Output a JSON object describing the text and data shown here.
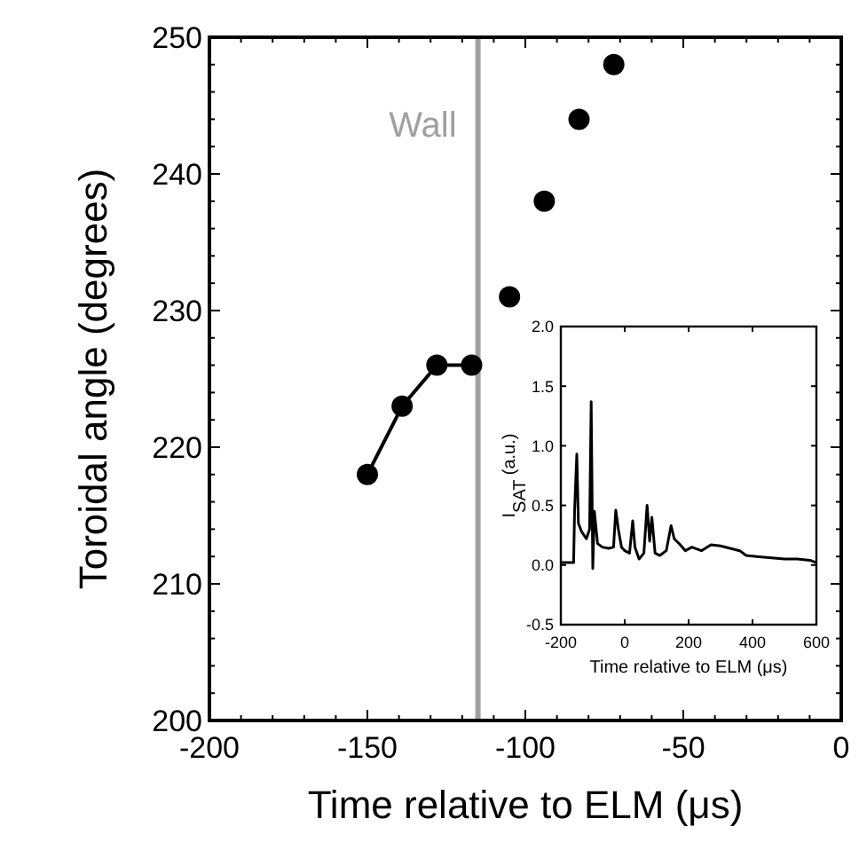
{
  "chart_data": [
    {
      "type": "line",
      "xlabel": "Time relative to ELM (μs)",
      "ylabel": "Toroidal angle (degrees)",
      "xlim": [
        -200,
        0
      ],
      "ylim": [
        200,
        250
      ],
      "xticks": [
        -200,
        {
          "value": -190,
          "label": null
        },
        {
          "value": -180,
          "label": null
        },
        {
          "value": -170,
          "label": null
        },
        {
          "value": -160,
          "label": null
        },
        -150,
        {
          "value": -140,
          "label": null
        },
        {
          "value": -130,
          "label": null
        },
        {
          "value": -120,
          "label": null
        },
        {
          "value": -110,
          "label": null
        },
        -100,
        {
          "value": -90,
          "label": null
        },
        {
          "value": -80,
          "label": null
        },
        {
          "value": -70,
          "label": null
        },
        {
          "value": -60,
          "label": null
        },
        -50,
        {
          "value": -40,
          "label": null
        },
        {
          "value": -30,
          "label": null
        },
        {
          "value": -20,
          "label": null
        },
        {
          "value": -10,
          "label": null
        },
        0
      ],
      "yticks": [
        200,
        {
          "value": 202,
          "label": null
        },
        {
          "value": 204,
          "label": null
        },
        {
          "value": 206,
          "label": null
        },
        {
          "value": 208,
          "label": null
        },
        210,
        {
          "value": 212,
          "label": null
        },
        {
          "value": 214,
          "label": null
        },
        {
          "value": 216,
          "label": null
        },
        {
          "value": 218,
          "label": null
        },
        220,
        {
          "value": 222,
          "label": null
        },
        {
          "value": 224,
          "label": null
        },
        {
          "value": 226,
          "label": null
        },
        {
          "value": 228,
          "label": null
        },
        230,
        {
          "value": 232,
          "label": null
        },
        {
          "value": 234,
          "label": null
        },
        {
          "value": 236,
          "label": null
        },
        {
          "value": 238,
          "label": null
        },
        240,
        {
          "value": 242,
          "label": null
        },
        {
          "value": 244,
          "label": null
        },
        {
          "value": 246,
          "label": null
        },
        {
          "value": 248,
          "label": null
        },
        250
      ],
      "marker": "circle",
      "series": [
        {
          "color": "#000000",
          "x": [
            -150,
            -139,
            -128,
            -117
          ],
          "values": [
            218,
            223,
            226,
            226
          ]
        },
        {
          "type": "scatter",
          "color": "#000000",
          "x": [
            -105,
            -94,
            -83,
            -72
          ],
          "values": [
            231,
            238,
            244,
            248
          ]
        }
      ],
      "ref_lines": [
        {
          "axis": "x",
          "value": -115,
          "label": "Wall",
          "color": "#a0a0a0"
        }
      ]
    },
    {
      "type": "line",
      "xlabel": "Time relative to ELM (μs)",
      "ylabel": "I$_{SAT}$    (a.u.)",
      "xlim": [
        -200,
        600
      ],
      "ylim": [
        -0.5,
        2.0
      ],
      "xticks": [
        {
          "value": -200,
          "label": "-200"
        },
        {
          "value": 0,
          "label": "0"
        },
        {
          "value": 200,
          "label": "200"
        },
        {
          "value": 400,
          "label": "400"
        },
        {
          "value": 600,
          "label": "600"
        }
      ],
      "yticks": [
        {
          "value": -0.5,
          "label": "-0.5"
        },
        {
          "value": 0,
          "label": "0.0"
        },
        {
          "value": 0.5,
          "label": "0.5"
        },
        {
          "value": 1,
          "label": "1.0"
        },
        {
          "value": 1.5,
          "label": "1.5"
        },
        {
          "value": 2,
          "label": "2.0"
        }
      ],
      "marker": "none",
      "series": [
        {
          "color": "#000000",
          "x": [
            -200,
            -160,
            -157,
            -150,
            -145,
            -135,
            -120,
            -110,
            -105,
            -100,
            -95,
            -85,
            -70,
            -50,
            -35,
            -28,
            -20,
            -10,
            0,
            15,
            25,
            32,
            45,
            60,
            70,
            78,
            85,
            95,
            110,
            130,
            145,
            155,
            170,
            190,
            210,
            240,
            270,
            300,
            330,
            360,
            380,
            420,
            460,
            500,
            540,
            580,
            600
          ],
          "values": [
            0.02,
            0.02,
            0.45,
            0.93,
            0.35,
            0.28,
            0.22,
            0.3,
            1.37,
            -0.03,
            0.45,
            0.18,
            0.15,
            0.14,
            0.15,
            0.46,
            0.3,
            0.15,
            0.12,
            0.1,
            0.37,
            0.15,
            0.05,
            0.1,
            0.5,
            0.2,
            0.4,
            0.1,
            0.08,
            0.12,
            0.33,
            0.22,
            0.18,
            0.12,
            0.15,
            0.12,
            0.17,
            0.16,
            0.14,
            0.12,
            0.08,
            0.07,
            0.06,
            0.05,
            0.05,
            0.04,
            0.02
          ]
        }
      ]
    }
  ]
}
